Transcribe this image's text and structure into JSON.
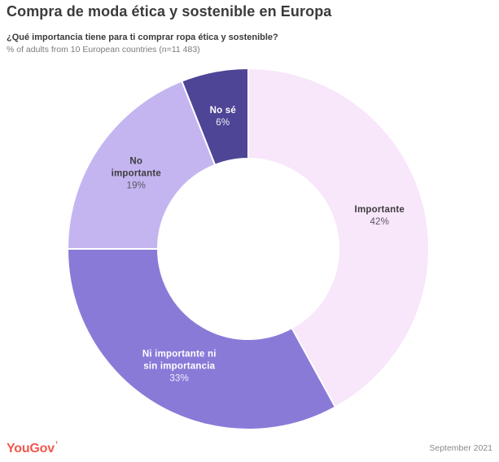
{
  "header": {
    "title": "Compra de moda ética y sostenible en Europa",
    "subtitle": "¿Qué importancia tiene para ti comprar ropa ética y sostenible?",
    "note": "% of adults from 10 European countries (n=11 483)"
  },
  "chart_data": {
    "type": "pie",
    "donut": true,
    "title": "Compra de moda ética y sostenible en Europa",
    "start_angle_deg": 0,
    "direction": "clockwise",
    "legend_position": "none",
    "value_suffix": "%",
    "segments": [
      {
        "label": "Importante",
        "label_lines": [
          "Importante"
        ],
        "value": 42,
        "color": "#f8e6fa",
        "text_color": "#3d3d3d",
        "pct_color": "#5a5860"
      },
      {
        "label": "Ni importante ni sin importancia",
        "label_lines": [
          "Ni importante ni",
          "sin importancia"
        ],
        "value": 33,
        "color": "#8a7ad8",
        "text_color": "#ffffff",
        "pct_color": "#f1edfa"
      },
      {
        "label": "No importante",
        "label_lines": [
          "No",
          "importante"
        ],
        "value": 19,
        "color": "#c4b5f1",
        "text_color": "#3d3d3d",
        "pct_color": "#5a5860"
      },
      {
        "label": "No sé",
        "label_lines": [
          "No sé"
        ],
        "value": 6,
        "color": "#4e4596",
        "text_color": "#ffffff",
        "pct_color": "#f1edfa"
      }
    ]
  },
  "footer": {
    "logo_text": "YouGov",
    "logo_mark": "’",
    "date": "September 2021"
  },
  "colors": {
    "logo_accent": "#f1584e",
    "title_text": "#3b3b3b",
    "note_text": "#7c7c7c",
    "segment_divider": "#ffffff"
  }
}
